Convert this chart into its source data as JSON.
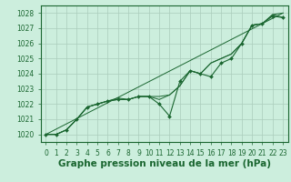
{
  "title": "Graphe pression niveau de la mer (hPa)",
  "bg_color": "#cceedd",
  "plot_bg_color": "#cceedd",
  "grid_color": "#aaccbb",
  "line_color": "#1a6630",
  "marker_color": "#1a6630",
  "xlim": [
    -0.5,
    23.5
  ],
  "ylim": [
    1019.5,
    1028.5
  ],
  "yticks": [
    1020,
    1021,
    1022,
    1023,
    1024,
    1025,
    1026,
    1027,
    1028
  ],
  "xticks": [
    0,
    1,
    2,
    3,
    4,
    5,
    6,
    7,
    8,
    9,
    10,
    11,
    12,
    13,
    14,
    15,
    16,
    17,
    18,
    19,
    20,
    21,
    22,
    23
  ],
  "series_no_marker": [
    [
      1020.0,
      1020.0,
      1020.3,
      1021.0,
      1021.8,
      1022.0,
      1022.2,
      1022.3,
      1022.3,
      1022.5,
      1022.5,
      1022.3,
      1022.6,
      1023.2,
      1024.2,
      1024.0,
      1024.7,
      1025.0,
      1025.3,
      1026.0,
      1027.2,
      1027.3,
      1027.9,
      1027.7
    ],
    [
      1020.0,
      1020.0,
      1020.3,
      1021.0,
      1021.8,
      1022.0,
      1022.2,
      1022.4,
      1022.3,
      1022.5,
      1022.5,
      1022.5,
      1022.6,
      1023.2,
      1024.2,
      1024.0,
      1024.7,
      1025.0,
      1025.3,
      1026.0,
      1027.2,
      1027.3,
      1027.9,
      1028.0
    ]
  ],
  "main_series": [
    1020.0,
    1020.0,
    1020.3,
    1021.0,
    1021.8,
    1022.0,
    1022.2,
    1022.3,
    1022.3,
    1022.5,
    1022.5,
    1022.0,
    1021.2,
    1023.5,
    1024.2,
    1024.0,
    1023.8,
    1024.7,
    1025.0,
    1026.0,
    1027.2,
    1027.3,
    1027.8,
    1027.7
  ],
  "title_fontsize": 7.5,
  "tick_fontsize": 5.5
}
